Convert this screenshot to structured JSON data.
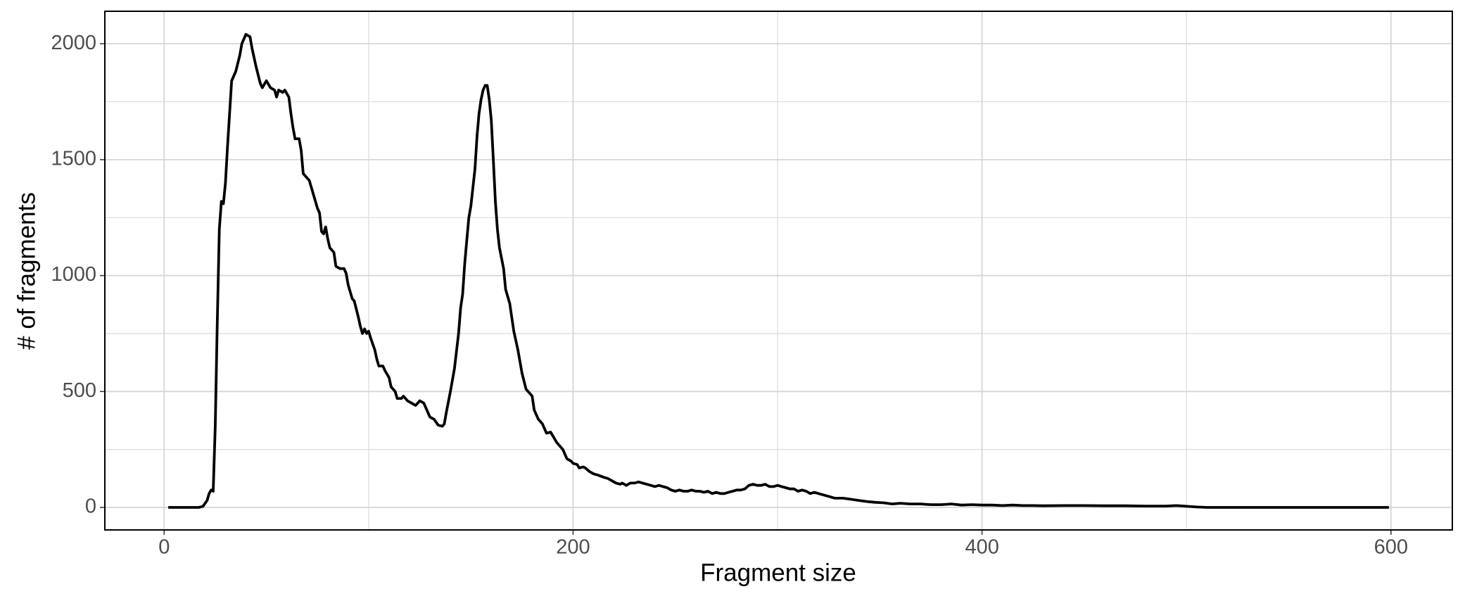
{
  "chart_data": {
    "type": "line",
    "x_label": "Fragment size",
    "y_label": "# of fragments",
    "xlim": [
      -29,
      630
    ],
    "ylim": [
      -97,
      2140
    ],
    "xticks": [
      0,
      200,
      400,
      600
    ],
    "yticks": [
      0,
      500,
      1000,
      1500,
      2000
    ],
    "xminorticks": [
      100,
      300,
      500
    ],
    "yminorticks": [
      250,
      750,
      1250,
      1750
    ],
    "grid": true,
    "series": [
      {
        "color": "#000000",
        "x": [
          2,
          10,
          17,
          19,
          21,
          22,
          23,
          24,
          25,
          26,
          27,
          28,
          29,
          30,
          31,
          32,
          33,
          35,
          37,
          38,
          40,
          42,
          43,
          45,
          47,
          48,
          50,
          52,
          54,
          55,
          56,
          58,
          59,
          61,
          62,
          63,
          64,
          66,
          67,
          68,
          69,
          71,
          73,
          75,
          76,
          77,
          78,
          79,
          80,
          81,
          83,
          84,
          86,
          88,
          89,
          90,
          92,
          93,
          95,
          96,
          97,
          98,
          99,
          100,
          101,
          103,
          104,
          105,
          107,
          108,
          110,
          111,
          113,
          114,
          116,
          117,
          119,
          121,
          123,
          125,
          127,
          129,
          130,
          132,
          134,
          136,
          137,
          138,
          140,
          142,
          144,
          145,
          146,
          147,
          148,
          149,
          150,
          151,
          152,
          153,
          154,
          155,
          156,
          157,
          158,
          159,
          160,
          161,
          162,
          163,
          164,
          166,
          167,
          169,
          171,
          173,
          175,
          177,
          178,
          180,
          181,
          183,
          185,
          187,
          189,
          190,
          192,
          194,
          195,
          196,
          197,
          199,
          200,
          202,
          203,
          205,
          206,
          208,
          210,
          212,
          215,
          217,
          219,
          221,
          223,
          224,
          226,
          228,
          230,
          232,
          234,
          236,
          238,
          240,
          242,
          244,
          246,
          248,
          250,
          252,
          254,
          256,
          258,
          260,
          262,
          264,
          266,
          268,
          270,
          272,
          274,
          276,
          278,
          280,
          282,
          284,
          286,
          288,
          290,
          292,
          294,
          296,
          298,
          300,
          302,
          304,
          306,
          308,
          310,
          312,
          314,
          316,
          318,
          320,
          322,
          324,
          326,
          328,
          332,
          336,
          340,
          344,
          348,
          352,
          356,
          360,
          365,
          370,
          375,
          380,
          385,
          390,
          395,
          400,
          405,
          410,
          415,
          420,
          425,
          430,
          440,
          450,
          460,
          470,
          480,
          490,
          495,
          500,
          505,
          510,
          520,
          560,
          599
        ],
        "values": [
          0,
          0,
          0,
          5,
          30,
          60,
          75,
          70,
          350,
          800,
          1200,
          1320,
          1310,
          1400,
          1560,
          1700,
          1840,
          1880,
          1950,
          2000,
          2040,
          2030,
          1980,
          1900,
          1830,
          1810,
          1840,
          1810,
          1800,
          1770,
          1800,
          1790,
          1800,
          1770,
          1700,
          1640,
          1590,
          1590,
          1540,
          1440,
          1430,
          1410,
          1350,
          1290,
          1270,
          1190,
          1180,
          1210,
          1160,
          1120,
          1100,
          1040,
          1030,
          1030,
          1010,
          960,
          900,
          890,
          820,
          780,
          750,
          770,
          750,
          760,
          730,
          680,
          640,
          610,
          610,
          590,
          560,
          520,
          500,
          470,
          470,
          480,
          460,
          450,
          440,
          460,
          450,
          410,
          390,
          380,
          355,
          350,
          360,
          410,
          500,
          600,
          750,
          860,
          920,
          1050,
          1150,
          1250,
          1300,
          1380,
          1460,
          1600,
          1700,
          1760,
          1800,
          1820,
          1820,
          1760,
          1670,
          1500,
          1320,
          1200,
          1120,
          1030,
          940,
          880,
          760,
          680,
          580,
          510,
          500,
          480,
          420,
          380,
          360,
          320,
          325,
          310,
          280,
          260,
          250,
          230,
          210,
          200,
          190,
          185,
          170,
          175,
          170,
          155,
          145,
          140,
          130,
          125,
          115,
          105,
          100,
          105,
          95,
          105,
          105,
          110,
          105,
          100,
          95,
          90,
          95,
          90,
          85,
          75,
          70,
          75,
          70,
          70,
          75,
          70,
          70,
          65,
          70,
          60,
          65,
          60,
          60,
          65,
          70,
          75,
          75,
          80,
          95,
          100,
          95,
          95,
          100,
          90,
          90,
          95,
          90,
          85,
          80,
          80,
          70,
          75,
          70,
          60,
          65,
          60,
          55,
          50,
          45,
          40,
          40,
          35,
          30,
          25,
          22,
          20,
          15,
          18,
          15,
          15,
          12,
          12,
          15,
          10,
          12,
          10,
          10,
          8,
          10,
          8,
          8,
          7,
          8,
          8,
          7,
          7,
          6,
          6,
          8,
          5,
          2,
          0,
          0,
          0,
          0
        ]
      }
    ]
  }
}
